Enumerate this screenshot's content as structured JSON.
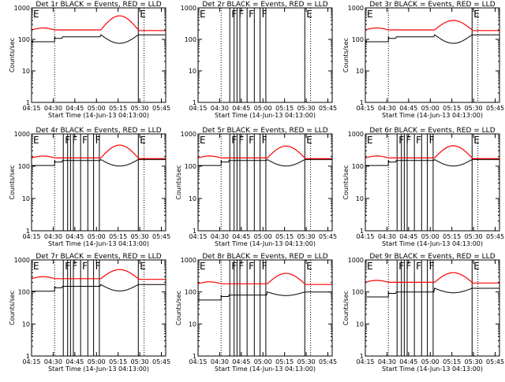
{
  "figure": {
    "start_label": "Start Time (14-Jun-13 04:13:00)",
    "ylabel": "Counts/sec",
    "x_tick_labels": [
      "04:15",
      "04:30",
      "04:45",
      "05:00",
      "05:15",
      "05:30",
      "05:45"
    ],
    "y_tick_labels": [
      "1",
      "10",
      "100",
      "1000"
    ],
    "colors": {
      "events": "#000000",
      "lld": "#ff0000",
      "axes": "#000000"
    }
  },
  "chart_data": [
    {
      "type": "line",
      "title": "Det 1r  BLACK = Events, RED = LLD",
      "xlabel": "Start Time (14-Jun-13 04:13:00)",
      "ylabel": "Counts/sec",
      "x_range_min": [
        2,
        95
      ],
      "ylim": [
        1,
        1000
      ],
      "y_log": true,
      "lld_level": 200,
      "events_level": 120,
      "events_level_after_saa": 140,
      "intervals": [
        {
          "label": "E",
          "start_min": 2,
          "end_min": 18,
          "shown": true
        },
        {
          "label": "F",
          "start_min": 24,
          "end_min": 27,
          "shown": false
        },
        {
          "label": "F",
          "start_min": 29,
          "end_min": 31,
          "shown": false
        },
        {
          "label": "F",
          "start_min": 36,
          "end_min": 41,
          "shown": false
        },
        {
          "label": "F",
          "start_min": 45,
          "end_min": 49,
          "shown": false
        },
        {
          "label": "E",
          "start_min": 76,
          "end_min": 80,
          "shown": true
        }
      ],
      "saa_peak_min": 66,
      "lld_peak": 560,
      "events_dip": 60
    },
    {
      "type": "line",
      "title": "Det 2r  BLACK = Events, RED = LLD",
      "xlabel": "Start Time (14-Jun-13 04:13:00)",
      "ylabel": "",
      "x_range_min": [
        2,
        95
      ],
      "ylim": [
        1,
        1000
      ],
      "y_log": true,
      "lld_level": null,
      "events_level": null,
      "intervals": [
        {
          "label": "E",
          "start_min": 2,
          "end_min": 18,
          "shown": true
        },
        {
          "label": "F",
          "start_min": 24,
          "end_min": 27,
          "shown": true
        },
        {
          "label": "F",
          "start_min": 29,
          "end_min": 31,
          "shown": true
        },
        {
          "label": "F",
          "start_min": 36,
          "end_min": 41,
          "shown": true
        },
        {
          "label": "F",
          "start_min": 45,
          "end_min": 49,
          "shown": true
        },
        {
          "label": "E",
          "start_min": 76,
          "end_min": 80,
          "shown": true
        }
      ]
    },
    {
      "type": "line",
      "title": "Det 3r  BLACK = Events, RED = LLD",
      "xlabel": "Start Time (14-Jun-13 04:13:00)",
      "ylabel": "Counts/sec",
      "x_range_min": [
        2,
        95
      ],
      "ylim": [
        1,
        1000
      ],
      "y_log": true,
      "lld_level": 200,
      "events_level": 120,
      "events_level_after_saa": 140,
      "intervals": [
        {
          "label": "E",
          "start_min": 2,
          "end_min": 18,
          "shown": true
        },
        {
          "label": "E",
          "start_min": 76,
          "end_min": 80,
          "shown": true
        }
      ],
      "saa_peak_min": 66,
      "lld_peak": 400,
      "events_dip": 60
    },
    {
      "type": "line",
      "title": "Det 4r  BLACK = Events, RED = LLD",
      "xlabel": "Start Time (14-Jun-13 04:13:00)",
      "ylabel": "Counts/sec",
      "x_range_min": [
        2,
        95
      ],
      "ylim": [
        1,
        1000
      ],
      "y_log": true,
      "lld_level": 180,
      "events_level": 150,
      "events_level_after_saa": 160,
      "intervals": [
        {
          "label": "E",
          "start_min": 2,
          "end_min": 18,
          "shown": true
        },
        {
          "label": "F",
          "start_min": 24,
          "end_min": 27,
          "shown": true
        },
        {
          "label": "F",
          "start_min": 29,
          "end_min": 31,
          "shown": true
        },
        {
          "label": "F",
          "start_min": 36,
          "end_min": 41,
          "shown": true
        },
        {
          "label": "F",
          "start_min": 45,
          "end_min": 49,
          "shown": true
        },
        {
          "label": "E",
          "start_min": 76,
          "end_min": 80,
          "shown": true
        }
      ],
      "saa_peak_min": 66,
      "lld_peak": 450,
      "events_dip": 90
    },
    {
      "type": "line",
      "title": "Det 5r  BLACK = Events, RED = LLD",
      "xlabel": "Start Time (14-Jun-13 04:13:00)",
      "ylabel": "Counts/sec",
      "x_range_min": [
        2,
        95
      ],
      "ylim": [
        1,
        1000
      ],
      "y_log": true,
      "lld_level": 180,
      "events_level": 150,
      "events_level_after_saa": 160,
      "intervals": [
        {
          "label": "E",
          "start_min": 2,
          "end_min": 18,
          "shown": true
        },
        {
          "label": "F",
          "start_min": 24,
          "end_min": 27,
          "shown": true
        },
        {
          "label": "F",
          "start_min": 29,
          "end_min": 31,
          "shown": true
        },
        {
          "label": "F",
          "start_min": 36,
          "end_min": 41,
          "shown": true
        },
        {
          "label": "F",
          "start_min": 45,
          "end_min": 49,
          "shown": true
        },
        {
          "label": "E",
          "start_min": 76,
          "end_min": 80,
          "shown": true
        }
      ],
      "saa_peak_min": 66,
      "lld_peak": 420,
      "events_dip": 90
    },
    {
      "type": "line",
      "title": "Det 6r  BLACK = Events, RED = LLD",
      "xlabel": "Start Time (14-Jun-13 04:13:00)",
      "ylabel": "Counts/sec",
      "x_range_min": [
        2,
        95
      ],
      "ylim": [
        1,
        1000
      ],
      "y_log": true,
      "lld_level": 180,
      "events_level": 150,
      "events_level_after_saa": 160,
      "intervals": [
        {
          "label": "E",
          "start_min": 2,
          "end_min": 18,
          "shown": true
        },
        {
          "label": "F",
          "start_min": 24,
          "end_min": 27,
          "shown": true
        },
        {
          "label": "F",
          "start_min": 29,
          "end_min": 31,
          "shown": true
        },
        {
          "label": "F",
          "start_min": 36,
          "end_min": 41,
          "shown": true
        },
        {
          "label": "F",
          "start_min": 45,
          "end_min": 49,
          "shown": true
        },
        {
          "label": "E",
          "start_min": 76,
          "end_min": 80,
          "shown": true
        }
      ],
      "saa_peak_min": 66,
      "lld_peak": 430,
      "events_dip": 90
    },
    {
      "type": "line",
      "title": "Det 7r  BLACK = Events, RED = LLD",
      "xlabel": "Start Time (14-Jun-13 04:13:00)",
      "ylabel": "Counts/sec",
      "x_range_min": [
        2,
        95
      ],
      "ylim": [
        1,
        1000
      ],
      "y_log": true,
      "lld_level": 260,
      "events_level": 150,
      "events_level_after_saa": 170,
      "intervals": [
        {
          "label": "E",
          "start_min": 2,
          "end_min": 18,
          "shown": true
        },
        {
          "label": "F",
          "start_min": 24,
          "end_min": 27,
          "shown": true
        },
        {
          "label": "F",
          "start_min": 29,
          "end_min": 31,
          "shown": true
        },
        {
          "label": "F",
          "start_min": 36,
          "end_min": 41,
          "shown": true
        },
        {
          "label": "F",
          "start_min": 45,
          "end_min": 49,
          "shown": true
        },
        {
          "label": "E",
          "start_min": 76,
          "end_min": 80,
          "shown": true
        }
      ],
      "saa_peak_min": 66,
      "lld_peak": 500,
      "events_dip": 90
    },
    {
      "type": "line",
      "title": "Det 8r  BLACK = Events, RED = LLD",
      "xlabel": "Start Time (14-Jun-13 04:13:00)",
      "ylabel": "Counts/sec",
      "x_range_min": [
        2,
        95
      ],
      "ylim": [
        1,
        1000
      ],
      "y_log": true,
      "lld_level": 180,
      "events_level": 80,
      "events_level_after_saa": 100,
      "intervals": [
        {
          "label": "E",
          "start_min": 2,
          "end_min": 18,
          "shown": true
        },
        {
          "label": "F",
          "start_min": 24,
          "end_min": 27,
          "shown": true
        },
        {
          "label": "F",
          "start_min": 29,
          "end_min": 31,
          "shown": true
        },
        {
          "label": "F",
          "start_min": 36,
          "end_min": 41,
          "shown": true
        },
        {
          "label": "F",
          "start_min": 45,
          "end_min": 49,
          "shown": true
        },
        {
          "label": "E",
          "start_min": 76,
          "end_min": 80,
          "shown": true
        }
      ],
      "saa_peak_min": 66,
      "lld_peak": 380,
      "events_dip": 60
    },
    {
      "type": "line",
      "title": "Det 9r  BLACK = Events, RED = LLD",
      "xlabel": "Start Time (14-Jun-13 04:13:00)",
      "ylabel": "Counts/sec",
      "x_range_min": [
        2,
        95
      ],
      "ylim": [
        1,
        1000
      ],
      "y_log": true,
      "lld_level": 200,
      "events_level": 100,
      "events_level_after_saa": 130,
      "intervals": [
        {
          "label": "E",
          "start_min": 2,
          "end_min": 18,
          "shown": true
        },
        {
          "label": "F",
          "start_min": 24,
          "end_min": 27,
          "shown": true
        },
        {
          "label": "F",
          "start_min": 29,
          "end_min": 31,
          "shown": true
        },
        {
          "label": "F",
          "start_min": 36,
          "end_min": 41,
          "shown": true
        },
        {
          "label": "F",
          "start_min": 45,
          "end_min": 49,
          "shown": true
        },
        {
          "label": "E",
          "start_min": 76,
          "end_min": 80,
          "shown": true
        }
      ],
      "saa_peak_min": 66,
      "lld_peak": 400,
      "events_dip": 70
    }
  ]
}
